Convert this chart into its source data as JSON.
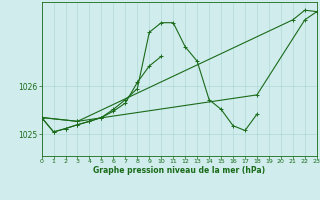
{
  "title": "Graphe pression niveau de la mer (hPa)",
  "background_color": "#d0ecec",
  "grid_color": "#b0d8d8",
  "line_color": "#1a6b1a",
  "xlim": [
    0,
    23
  ],
  "ylim": [
    1024.55,
    1027.75
  ],
  "yticks": [
    1025,
    1026
  ],
  "xticks": [
    0,
    1,
    2,
    3,
    4,
    5,
    6,
    7,
    8,
    9,
    10,
    11,
    12,
    13,
    14,
    15,
    16,
    17,
    18,
    19,
    20,
    21,
    22,
    23
  ],
  "s1_x": [
    0,
    1,
    2,
    3,
    4,
    5,
    6,
    7,
    8,
    9,
    10,
    11,
    12,
    13,
    14,
    15,
    16,
    17,
    18
  ],
  "s1_y": [
    1025.35,
    1025.05,
    1025.12,
    1025.2,
    1025.27,
    1025.35,
    1025.52,
    1025.72,
    1025.95,
    1027.12,
    1027.32,
    1027.32,
    1026.82,
    1026.52,
    1025.72,
    1025.52,
    1025.18,
    1025.08,
    1025.42
  ],
  "s2_x": [
    0,
    1,
    2,
    3,
    4,
    5,
    6,
    7,
    8,
    9,
    10
  ],
  "s2_y": [
    1025.35,
    1025.05,
    1025.12,
    1025.2,
    1025.27,
    1025.35,
    1025.48,
    1025.65,
    1026.08,
    1026.42,
    1026.62
  ],
  "s3_x": [
    0,
    3,
    21,
    22,
    23
  ],
  "s3_y": [
    1025.35,
    1025.27,
    1027.38,
    1027.58,
    1027.55
  ],
  "s4_x": [
    0,
    3,
    18,
    22,
    23
  ],
  "s4_y": [
    1025.35,
    1025.27,
    1025.82,
    1027.38,
    1027.55
  ]
}
